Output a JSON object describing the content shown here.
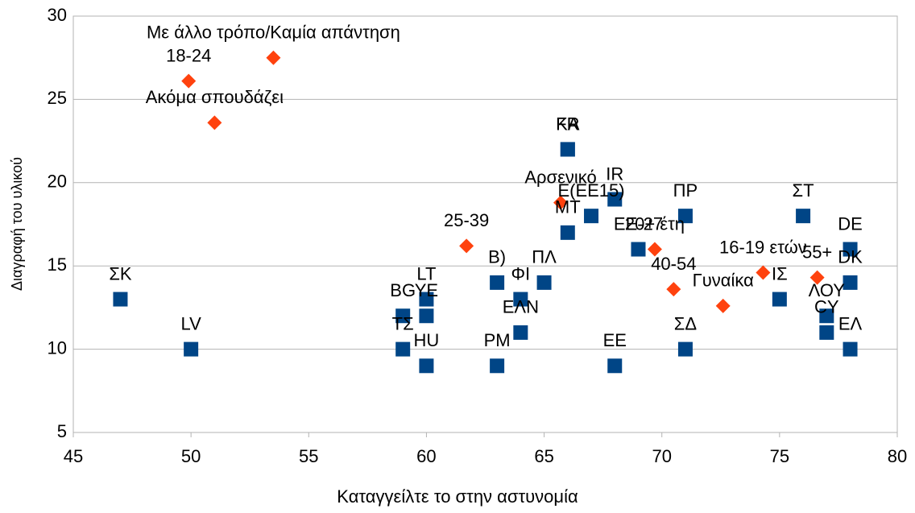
{
  "chart_data": {
    "type": "scatter",
    "x_label": "Καταγγείλτε το στην αστυνομία",
    "y_label": "Διαγραφή του υλικού",
    "xlim": [
      45,
      80
    ],
    "xticks": [
      45,
      50,
      55,
      60,
      65,
      70,
      75,
      80
    ],
    "ylim": [
      5,
      30
    ],
    "yticks": [
      5,
      10,
      15,
      20,
      25,
      30
    ],
    "grid": true,
    "series": [
      {
        "marker": "square",
        "color": "#004586",
        "labels": [
          "ΣΚ",
          "LV",
          "BG",
          "ΤΣ",
          "LT",
          "YE",
          "HU",
          "ΡΜ",
          "Β)",
          "ΦΙ",
          "ΕΛΝ",
          "ΠΛ",
          "ΜΤ",
          "FR",
          "ΚΑ",
          "IR",
          "EE",
          "Ε(ΕΕ15)",
          "ΕΕ-27",
          "ΠΡ",
          "ΣΔ",
          "ΣΤ",
          "ΙΣ",
          "DE",
          "DK",
          "ΛΟΥ",
          "CY",
          "ΕΛ"
        ],
        "x": [
          47,
          50,
          59,
          59,
          60,
          60,
          60,
          63,
          63,
          64,
          64,
          65,
          66,
          66,
          66,
          68,
          68,
          67,
          69,
          71,
          71,
          76,
          75,
          78,
          78,
          77,
          77,
          78
        ],
        "values": [
          13,
          10,
          12,
          10,
          13,
          12,
          9,
          9,
          14,
          13,
          11,
          14,
          17,
          22,
          22,
          19,
          9,
          18,
          16,
          18,
          10,
          18,
          13,
          16,
          14,
          12,
          11,
          10
        ]
      },
      {
        "marker": "diamond",
        "color": "#ff420e",
        "labels": [
          "18-24",
          "Με άλλο τρόπο/Καμία απάντηση",
          "Ακόμα σπουδάζει",
          "25-39",
          "Αρσενικό",
          "20+ έτη",
          "40-54",
          "Γυναίκα",
          "16-19 ετών",
          "55+"
        ],
        "x": [
          49.9,
          53.5,
          51,
          61.7,
          65.7,
          69.7,
          70.5,
          72.6,
          74.3,
          76.6
        ],
        "values": [
          26.1,
          27.5,
          23.6,
          16.2,
          18.8,
          16,
          13.6,
          12.6,
          14.6,
          14.3
        ]
      }
    ]
  }
}
